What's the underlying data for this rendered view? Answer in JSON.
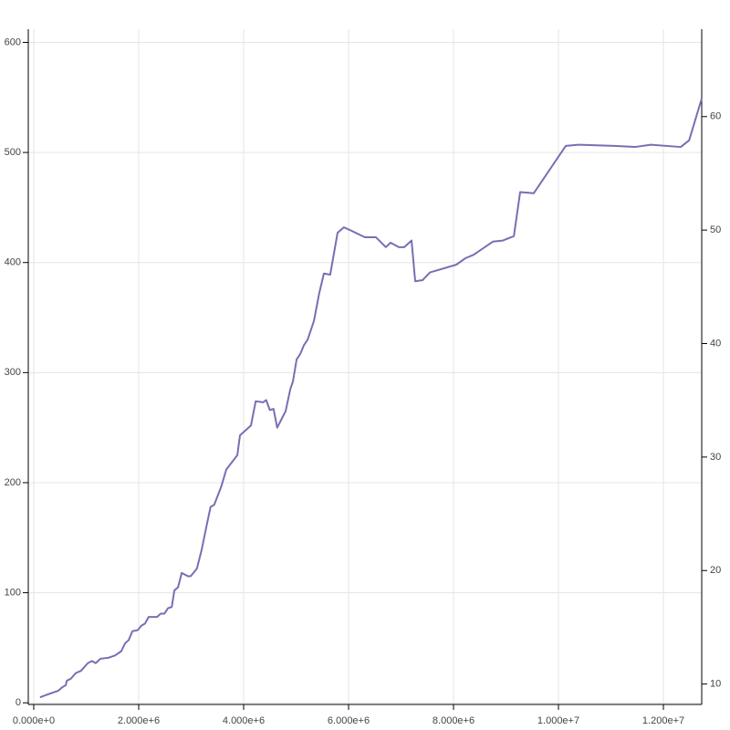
{
  "chart_data": {
    "type": "line",
    "x": [
      120000,
      230000,
      350000,
      470000,
      540000,
      610000,
      630000,
      710000,
      800000,
      900000,
      1030000,
      1110000,
      1180000,
      1270000,
      1430000,
      1550000,
      1670000,
      1740000,
      1810000,
      1880000,
      1980000,
      2050000,
      2120000,
      2190000,
      2350000,
      2420000,
      2490000,
      2560000,
      2630000,
      2680000,
      2750000,
      2820000,
      2940000,
      2990000,
      3060000,
      3110000,
      3200000,
      3290000,
      3370000,
      3440000,
      3570000,
      3670000,
      3880000,
      3930000,
      4140000,
      4230000,
      4370000,
      4430000,
      4500000,
      4570000,
      4640000,
      4800000,
      4890000,
      4940000,
      5010000,
      5080000,
      5150000,
      5220000,
      5340000,
      5440000,
      5530000,
      5650000,
      5790000,
      5910000,
      6050000,
      6310000,
      6520000,
      6710000,
      6800000,
      6960000,
      7060000,
      7200000,
      7270000,
      7410000,
      7550000,
      8050000,
      8230000,
      8380000,
      8750000,
      8940000,
      9150000,
      9270000,
      9530000,
      10140000,
      10380000,
      11060000,
      11460000,
      11760000,
      12330000,
      12490000,
      12730000
    ],
    "values": [
      5,
      7,
      9,
      11,
      14,
      16,
      20,
      22,
      27,
      29,
      36,
      38,
      36,
      40,
      41,
      43,
      47,
      54,
      57,
      65,
      66,
      70,
      72,
      78,
      78,
      81,
      81,
      86,
      87,
      102,
      105,
      118,
      115,
      115,
      119,
      122,
      139,
      160,
      178,
      180,
      196,
      212,
      225,
      243,
      252,
      274,
      273,
      275,
      266,
      267,
      250,
      265,
      285,
      292,
      312,
      317,
      325,
      330,
      347,
      372,
      390,
      389,
      427,
      432,
      429,
      423,
      423,
      414,
      418,
      414,
      414,
      420,
      383,
      384,
      391,
      398,
      404,
      407,
      419,
      420,
      424,
      464,
      463,
      506,
      507,
      506,
      505,
      507,
      505,
      511,
      549
    ],
    "color": "#7570b3",
    "xlim": [
      -104000,
      12730000
    ],
    "xticks": [
      {
        "value": 0,
        "label": "0.000e+0"
      },
      {
        "value": 2000000,
        "label": "2.000e+6"
      },
      {
        "value": 4000000,
        "label": "4.000e+6"
      },
      {
        "value": 6000000,
        "label": "6.000e+6"
      },
      {
        "value": 8000000,
        "label": "8.000e+6"
      },
      {
        "value": 10000000,
        "label": "1.000e+7"
      },
      {
        "value": 12000000,
        "label": "1.200e+7"
      }
    ],
    "ylim": [
      -1.5,
      612
    ],
    "yticks": [
      0,
      100,
      200,
      300,
      400,
      500,
      600
    ],
    "y2lim": [
      8.2,
      67.7
    ],
    "y2ticks": [
      10,
      20,
      30,
      40,
      50,
      60
    ],
    "grid": true
  }
}
